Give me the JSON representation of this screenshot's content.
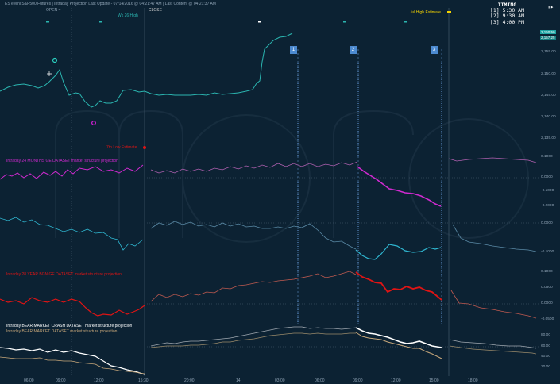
{
  "header": {
    "title": "ES eMini S&P500 Futures | Intraday Projection Last Update - 07/14/2016 @ 04:21:47 AM   | Last Content @ 04:21:37 AM",
    "open_label": "OPEN =",
    "close_label": "CLOSE",
    "high_label": "Wk 26 High",
    "estimate_label": "Jul High Estimate"
  },
  "timing": {
    "title": "TIMING",
    "items": [
      "[1] 5:30 AM",
      "[2] 9:30 AM",
      "[3] 4:00 PM"
    ]
  },
  "markers": [
    "1",
    "2",
    "3"
  ],
  "price_boxes": [
    "2,160.50",
    "2,157.25"
  ],
  "yaxis": {
    "price": [
      "2,155.00",
      "2,150.00",
      "2,145.00",
      "2,140.00",
      "2,135.00"
    ],
    "osc1": [
      "0.1000",
      "0.0000",
      "-0.1000",
      "-0.2000"
    ],
    "osc2": [
      "0.0000",
      "-0.1000"
    ],
    "osc3": [
      "0.1000",
      "0.0500",
      "0.0000",
      "-0.0500"
    ],
    "osc4": [
      "80.00",
      "60.00",
      "40.00",
      "20.00"
    ]
  },
  "xaxis": [
    "06:00",
    "09:00",
    "12:00",
    "15:30",
    "20:00",
    "14",
    "03:00",
    "06:00",
    "09:00",
    "12:00",
    "15:00",
    "18:00"
  ],
  "panels": {
    "p1_label": "Intraday 24 MONTHS GE DATASET  market structure  projection",
    "p3_label": "Intraday 28 YEAR BGN GE DATASET  market structure  projection",
    "p4_label_a": "Intraday BEAR MARKET CRASH  DATASET  market structure projection",
    "p4_label_b": "Intraday BEAR MARKET DATASET  market structure projection",
    "low_label": "7th Low Estimate"
  },
  "colors": {
    "bg": "#0c2233",
    "price": "#2bb5b0",
    "magenta": "#d02ad0",
    "red": "#e01414",
    "white": "#ffffff",
    "tan": "#c7a77a",
    "teal2": "#2fb6d0"
  },
  "series": {
    "price": [
      [
        0,
        115
      ],
      [
        10,
        110
      ],
      [
        20,
        107
      ],
      [
        30,
        106
      ],
      [
        40,
        108
      ],
      [
        48,
        111
      ],
      [
        56,
        108
      ],
      [
        62,
        103
      ],
      [
        70,
        95
      ],
      [
        75,
        88
      ],
      [
        80,
        104
      ],
      [
        87,
        120
      ],
      [
        95,
        117
      ],
      [
        100,
        118
      ],
      [
        107,
        128
      ],
      [
        115,
        135
      ],
      [
        120,
        133
      ],
      [
        126,
        127
      ],
      [
        133,
        130
      ],
      [
        140,
        130
      ],
      [
        147,
        127
      ],
      [
        155,
        114
      ],
      [
        165,
        113
      ],
      [
        175,
        116
      ],
      [
        182,
        115
      ],
      [
        190,
        118
      ],
      [
        200,
        120
      ],
      [
        210,
        119
      ],
      [
        220,
        120
      ],
      [
        230,
        120
      ],
      [
        240,
        120
      ],
      [
        250,
        119
      ],
      [
        260,
        120
      ],
      [
        270,
        117
      ],
      [
        280,
        119
      ],
      [
        290,
        118
      ],
      [
        300,
        117
      ],
      [
        310,
        115
      ],
      [
        318,
        113
      ],
      [
        323,
        105
      ],
      [
        327,
        102
      ],
      [
        330,
        78
      ],
      [
        333,
        62
      ],
      [
        338,
        57
      ],
      [
        344,
        51
      ],
      [
        352,
        47
      ],
      [
        360,
        46
      ],
      [
        368,
        42
      ]
    ],
    "magenta_a": [
      [
        0,
        226
      ],
      [
        8,
        220
      ],
      [
        15,
        222
      ],
      [
        22,
        218
      ],
      [
        30,
        224
      ],
      [
        38,
        219
      ],
      [
        46,
        225
      ],
      [
        55,
        217
      ],
      [
        63,
        221
      ],
      [
        70,
        216
      ],
      [
        78,
        222
      ],
      [
        85,
        214
      ],
      [
        92,
        219
      ],
      [
        100,
        212
      ],
      [
        110,
        214
      ],
      [
        120,
        210
      ],
      [
        130,
        216
      ],
      [
        140,
        214
      ],
      [
        150,
        218
      ],
      [
        160,
        212
      ],
      [
        170,
        216
      ],
      [
        180,
        208
      ]
    ],
    "magenta_b": [
      [
        190,
        214
      ],
      [
        200,
        218
      ],
      [
        210,
        215
      ],
      [
        220,
        218
      ],
      [
        230,
        213
      ],
      [
        240,
        216
      ],
      [
        250,
        213
      ],
      [
        260,
        216
      ],
      [
        270,
        212
      ],
      [
        280,
        214
      ],
      [
        290,
        210
      ],
      [
        300,
        213
      ],
      [
        310,
        209
      ],
      [
        320,
        212
      ],
      [
        330,
        208
      ],
      [
        340,
        211
      ],
      [
        350,
        206
      ],
      [
        360,
        210
      ],
      [
        370,
        206
      ],
      [
        380,
        210
      ],
      [
        390,
        206
      ],
      [
        400,
        210
      ],
      [
        410,
        207
      ],
      [
        420,
        209
      ],
      [
        430,
        205
      ],
      [
        440,
        208
      ],
      [
        450,
        204
      ]
    ],
    "magenta_c": [
      [
        450,
        210
      ],
      [
        458,
        216
      ],
      [
        466,
        221
      ],
      [
        474,
        226
      ],
      [
        482,
        232
      ],
      [
        490,
        238
      ],
      [
        500,
        240
      ],
      [
        510,
        243
      ],
      [
        520,
        244
      ],
      [
        530,
        247
      ],
      [
        540,
        252
      ],
      [
        548,
        257
      ],
      [
        555,
        260
      ]
    ],
    "magenta_d": [
      [
        565,
        200
      ],
      [
        575,
        203
      ],
      [
        590,
        201
      ],
      [
        605,
        200
      ],
      [
        620,
        199
      ],
      [
        635,
        200
      ],
      [
        650,
        201
      ],
      [
        665,
        202
      ],
      [
        675,
        205
      ]
    ],
    "teal_a": [
      [
        0,
        275
      ],
      [
        10,
        278
      ],
      [
        20,
        274
      ],
      [
        30,
        280
      ],
      [
        40,
        277
      ],
      [
        50,
        283
      ],
      [
        60,
        284
      ],
      [
        70,
        288
      ],
      [
        80,
        292
      ],
      [
        90,
        289
      ],
      [
        100,
        293
      ],
      [
        110,
        289
      ],
      [
        120,
        294
      ],
      [
        130,
        293
      ],
      [
        140,
        300
      ],
      [
        148,
        302
      ],
      [
        155,
        315
      ],
      [
        162,
        307
      ],
      [
        170,
        310
      ],
      [
        180,
        302
      ]
    ],
    "teal_b": [
      [
        190,
        288
      ],
      [
        200,
        281
      ],
      [
        210,
        284
      ],
      [
        220,
        279
      ],
      [
        230,
        283
      ],
      [
        240,
        280
      ],
      [
        250,
        285
      ],
      [
        260,
        283
      ],
      [
        270,
        286
      ],
      [
        280,
        281
      ],
      [
        290,
        285
      ],
      [
        300,
        282
      ],
      [
        310,
        286
      ],
      [
        320,
        285
      ],
      [
        330,
        288
      ],
      [
        340,
        288
      ],
      [
        350,
        286
      ],
      [
        360,
        288
      ],
      [
        370,
        285
      ],
      [
        380,
        287
      ],
      [
        390,
        282
      ],
      [
        400,
        290
      ],
      [
        410,
        300
      ],
      [
        420,
        305
      ],
      [
        430,
        304
      ],
      [
        440,
        310
      ],
      [
        448,
        314
      ]
    ],
    "teal_c": [
      [
        448,
        315
      ],
      [
        456,
        322
      ],
      [
        464,
        326
      ],
      [
        472,
        327
      ],
      [
        480,
        320
      ],
      [
        490,
        308
      ],
      [
        500,
        310
      ],
      [
        510,
        316
      ],
      [
        520,
        318
      ],
      [
        530,
        317
      ],
      [
        540,
        312
      ],
      [
        548,
        314
      ],
      [
        555,
        312
      ]
    ],
    "teal_d": [
      [
        570,
        283
      ],
      [
        580,
        300
      ],
      [
        590,
        305
      ],
      [
        605,
        307
      ],
      [
        620,
        310
      ],
      [
        635,
        312
      ],
      [
        650,
        314
      ],
      [
        665,
        315
      ],
      [
        675,
        317
      ]
    ],
    "red_a": [
      [
        0,
        377
      ],
      [
        10,
        381
      ],
      [
        20,
        379
      ],
      [
        30,
        383
      ],
      [
        40,
        375
      ],
      [
        50,
        379
      ],
      [
        60,
        381
      ],
      [
        70,
        377
      ],
      [
        80,
        381
      ],
      [
        90,
        377
      ],
      [
        100,
        380
      ],
      [
        108,
        388
      ],
      [
        115,
        394
      ],
      [
        123,
        398
      ],
      [
        130,
        396
      ],
      [
        140,
        397
      ],
      [
        150,
        391
      ],
      [
        160,
        396
      ],
      [
        168,
        393
      ],
      [
        175,
        390
      ],
      [
        182,
        385
      ]
    ],
    "red_b": [
      [
        190,
        380
      ],
      [
        200,
        371
      ],
      [
        210,
        375
      ],
      [
        220,
        371
      ],
      [
        230,
        374
      ],
      [
        240,
        370
      ],
      [
        250,
        372
      ],
      [
        260,
        368
      ],
      [
        270,
        369
      ],
      [
        280,
        363
      ],
      [
        290,
        364
      ],
      [
        300,
        360
      ],
      [
        310,
        359
      ],
      [
        320,
        357
      ],
      [
        330,
        355
      ],
      [
        340,
        356
      ],
      [
        350,
        354
      ],
      [
        360,
        353
      ],
      [
        370,
        352
      ],
      [
        380,
        350
      ],
      [
        390,
        348
      ],
      [
        400,
        345
      ],
      [
        410,
        350
      ],
      [
        420,
        348
      ],
      [
        430,
        345
      ],
      [
        440,
        342
      ],
      [
        448,
        346
      ]
    ],
    "red_c": [
      [
        448,
        343
      ],
      [
        456,
        349
      ],
      [
        464,
        352
      ],
      [
        472,
        356
      ],
      [
        480,
        357
      ],
      [
        488,
        368
      ],
      [
        496,
        364
      ],
      [
        504,
        365
      ],
      [
        512,
        361
      ],
      [
        520,
        364
      ],
      [
        528,
        362
      ],
      [
        536,
        366
      ],
      [
        544,
        368
      ],
      [
        550,
        373
      ],
      [
        556,
        378
      ]
    ],
    "red_d": [
      [
        568,
        366
      ],
      [
        578,
        382
      ],
      [
        590,
        383
      ],
      [
        605,
        388
      ],
      [
        620,
        390
      ],
      [
        635,
        393
      ],
      [
        650,
        395
      ],
      [
        665,
        398
      ],
      [
        675,
        401
      ]
    ],
    "white_a": [
      [
        0,
        438
      ],
      [
        10,
        439
      ],
      [
        20,
        441
      ],
      [
        30,
        440
      ],
      [
        40,
        442
      ],
      [
        50,
        440
      ],
      [
        60,
        444
      ],
      [
        70,
        441
      ],
      [
        80,
        444
      ],
      [
        90,
        442
      ],
      [
        100,
        445
      ],
      [
        110,
        447
      ],
      [
        120,
        449
      ],
      [
        130,
        455
      ],
      [
        140,
        461
      ],
      [
        150,
        463
      ],
      [
        160,
        466
      ],
      [
        170,
        468
      ],
      [
        182,
        472
      ]
    ],
    "tan_a": [
      [
        0,
        450
      ],
      [
        10,
        451
      ],
      [
        20,
        452
      ],
      [
        30,
        452
      ],
      [
        40,
        452
      ],
      [
        50,
        451
      ],
      [
        60,
        454
      ],
      [
        70,
        454
      ],
      [
        80,
        455
      ],
      [
        90,
        455
      ],
      [
        100,
        457
      ],
      [
        110,
        458
      ],
      [
        120,
        459
      ],
      [
        130,
        464
      ],
      [
        140,
        465
      ],
      [
        150,
        467
      ],
      [
        160,
        468
      ],
      [
        170,
        469
      ],
      [
        182,
        471
      ]
    ],
    "white_b": [
      [
        190,
        436
      ],
      [
        200,
        434
      ],
      [
        210,
        432
      ],
      [
        220,
        433
      ],
      [
        230,
        431
      ],
      [
        240,
        430
      ],
      [
        250,
        430
      ],
      [
        260,
        429
      ],
      [
        270,
        428
      ],
      [
        280,
        427
      ],
      [
        290,
        426
      ],
      [
        300,
        424
      ],
      [
        310,
        422
      ],
      [
        320,
        420
      ],
      [
        330,
        418
      ],
      [
        340,
        416
      ],
      [
        350,
        414
      ],
      [
        360,
        413
      ],
      [
        370,
        412
      ],
      [
        380,
        412
      ],
      [
        390,
        414
      ],
      [
        400,
        413
      ],
      [
        410,
        414
      ],
      [
        420,
        414
      ],
      [
        430,
        415
      ],
      [
        440,
        414
      ],
      [
        448,
        413
      ]
    ],
    "tan_b": [
      [
        190,
        438
      ],
      [
        200,
        437
      ],
      [
        210,
        436
      ],
      [
        220,
        436
      ],
      [
        230,
        436
      ],
      [
        240,
        435
      ],
      [
        250,
        435
      ],
      [
        260,
        434
      ],
      [
        270,
        433
      ],
      [
        280,
        431
      ],
      [
        290,
        431
      ],
      [
        300,
        429
      ],
      [
        310,
        428
      ],
      [
        320,
        427
      ],
      [
        330,
        425
      ],
      [
        340,
        423
      ],
      [
        350,
        422
      ],
      [
        360,
        421
      ],
      [
        370,
        420
      ],
      [
        380,
        420
      ],
      [
        390,
        421
      ],
      [
        400,
        420
      ],
      [
        410,
        421
      ],
      [
        420,
        421
      ],
      [
        430,
        421
      ],
      [
        440,
        420
      ],
      [
        448,
        420
      ]
    ],
    "white_c": [
      [
        448,
        413
      ],
      [
        456,
        417
      ],
      [
        464,
        420
      ],
      [
        472,
        421
      ],
      [
        480,
        423
      ],
      [
        488,
        425
      ],
      [
        496,
        428
      ],
      [
        504,
        431
      ],
      [
        512,
        433
      ],
      [
        520,
        432
      ],
      [
        528,
        430
      ],
      [
        536,
        433
      ],
      [
        544,
        436
      ],
      [
        550,
        437
      ],
      [
        556,
        438
      ]
    ],
    "tan_c": [
      [
        448,
        419
      ],
      [
        456,
        424
      ],
      [
        464,
        426
      ],
      [
        472,
        427
      ],
      [
        480,
        428
      ],
      [
        488,
        431
      ],
      [
        496,
        433
      ],
      [
        504,
        435
      ],
      [
        512,
        437
      ],
      [
        520,
        439
      ],
      [
        528,
        439
      ],
      [
        536,
        443
      ],
      [
        544,
        446
      ],
      [
        550,
        449
      ],
      [
        556,
        452
      ]
    ],
    "white_d": [
      [
        566,
        428
      ],
      [
        580,
        431
      ],
      [
        595,
        432
      ],
      [
        610,
        433
      ],
      [
        625,
        435
      ],
      [
        640,
        436
      ],
      [
        655,
        436
      ],
      [
        670,
        438
      ],
      [
        675,
        439
      ]
    ],
    "tan_d": [
      [
        566,
        436
      ],
      [
        580,
        438
      ],
      [
        595,
        440
      ],
      [
        610,
        441
      ],
      [
        625,
        442
      ],
      [
        640,
        443
      ],
      [
        655,
        444
      ],
      [
        670,
        445
      ],
      [
        675,
        446
      ]
    ]
  }
}
